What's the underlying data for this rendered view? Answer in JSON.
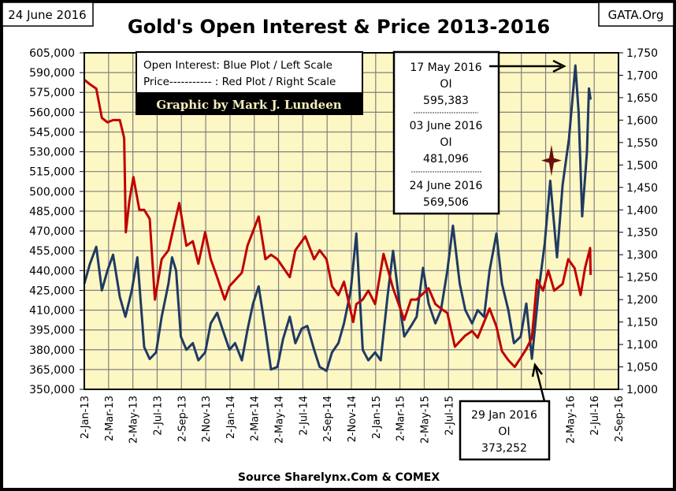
{
  "header": {
    "date": "24 June 2016",
    "site": "GATA.Org"
  },
  "legend": {
    "line1": "Open Interest:  Blue Plot / Left Scale",
    "line2": "Price----------- : Red Plot / Right Scale",
    "credit": "Graphic by Mark J. Lundeen"
  },
  "annotations": {
    "box1": {
      "a_date": "17 May 2016",
      "a_label": "OI",
      "a_value": "595,383",
      "b_date": "03 June 2016",
      "b_label": "OI",
      "b_value": "481,096",
      "c_date": "24 June 2016",
      "c_value": "569,506"
    },
    "box2": {
      "date": "29 Jan 2016",
      "label": "OI",
      "value": "373,252"
    }
  },
  "source": "Source Sharelynx.Com & COMEX",
  "colors": {
    "oi": "#1f3a63",
    "price": "#c00000",
    "plot_bg": "#fdf7c3",
    "grid": "#808080",
    "marker": "#6b0f0f"
  },
  "chart_data": {
    "type": "line",
    "title": "Gold's Open Interest & Price 2013-2016",
    "grid": true,
    "x_range": [
      "2013-01-02",
      "2016-09-02"
    ],
    "x_ticks": [
      "2-Jan-13",
      "2-Mar-13",
      "2-May-13",
      "2-Jul-13",
      "2-Sep-13",
      "2-Nov-13",
      "2-Jan-14",
      "2-Mar-14",
      "2-May-14",
      "2-Jul-14",
      "2-Sep-14",
      "2-Nov-14",
      "2-Jan-15",
      "2-Mar-15",
      "2-May-15",
      "2-Jul-15",
      "",
      "",
      "",
      "",
      "2-May-16",
      "2-Jul-16",
      "2-Sep-16"
    ],
    "y_left": {
      "range": [
        350000,
        605000
      ],
      "ticks": [
        "350,000",
        "365,000",
        "380,000",
        "395,000",
        "410,000",
        "425,000",
        "440,000",
        "455,000",
        "470,000",
        "485,000",
        "500,000",
        "515,000",
        "530,000",
        "545,000",
        "560,000",
        "575,000",
        "590,000",
        "605,000"
      ]
    },
    "y_right": {
      "range": [
        1000,
        1750
      ],
      "ticks": [
        "1,000",
        "1,050",
        "1,100",
        "1,150",
        "1,200",
        "1,250",
        "1,300",
        "1,350",
        "1,400",
        "1,450",
        "1,500",
        "1,550",
        "1,600",
        "1,650",
        "1,700",
        "1,750"
      ]
    },
    "series": [
      {
        "axis": "left",
        "points": [
          [
            "2013-01-02",
            430000
          ],
          [
            "2013-01-16",
            445000
          ],
          [
            "2013-02-01",
            458000
          ],
          [
            "2013-02-15",
            425000
          ],
          [
            "2013-03-01",
            440000
          ],
          [
            "2013-03-15",
            452000
          ],
          [
            "2013-04-01",
            420000
          ],
          [
            "2013-04-15",
            405000
          ],
          [
            "2013-05-01",
            425000
          ],
          [
            "2013-05-15",
            450000
          ],
          [
            "2013-06-01",
            382000
          ],
          [
            "2013-06-15",
            373000
          ],
          [
            "2013-07-01",
            378000
          ],
          [
            "2013-07-15",
            405000
          ],
          [
            "2013-08-01",
            430000
          ],
          [
            "2013-08-10",
            450000
          ],
          [
            "2013-08-20",
            440000
          ],
          [
            "2013-09-01",
            390000
          ],
          [
            "2013-09-15",
            380000
          ],
          [
            "2013-10-01",
            385000
          ],
          [
            "2013-10-15",
            372000
          ],
          [
            "2013-11-01",
            378000
          ],
          [
            "2013-11-15",
            400000
          ],
          [
            "2013-12-01",
            408000
          ],
          [
            "2013-12-15",
            395000
          ],
          [
            "2014-01-01",
            380000
          ],
          [
            "2014-01-15",
            385000
          ],
          [
            "2014-02-01",
            372000
          ],
          [
            "2014-02-15",
            395000
          ],
          [
            "2014-03-01",
            415000
          ],
          [
            "2014-03-15",
            428000
          ],
          [
            "2014-04-01",
            395000
          ],
          [
            "2014-04-15",
            365000
          ],
          [
            "2014-05-01",
            367000
          ],
          [
            "2014-05-15",
            388000
          ],
          [
            "2014-06-01",
            405000
          ],
          [
            "2014-06-15",
            385000
          ],
          [
            "2014-07-01",
            396000
          ],
          [
            "2014-07-15",
            398000
          ],
          [
            "2014-08-01",
            380000
          ],
          [
            "2014-08-15",
            367000
          ],
          [
            "2014-09-01",
            364000
          ],
          [
            "2014-09-15",
            378000
          ],
          [
            "2014-10-01",
            385000
          ],
          [
            "2014-10-15",
            400000
          ],
          [
            "2014-11-01",
            425000
          ],
          [
            "2014-11-15",
            468000
          ],
          [
            "2014-12-01",
            380000
          ],
          [
            "2014-12-15",
            372000
          ],
          [
            "2015-01-01",
            378000
          ],
          [
            "2015-01-15",
            372000
          ],
          [
            "2015-02-01",
            420000
          ],
          [
            "2015-02-15",
            455000
          ],
          [
            "2015-03-01",
            420000
          ],
          [
            "2015-03-15",
            390000
          ],
          [
            "2015-04-01",
            398000
          ],
          [
            "2015-04-15",
            405000
          ],
          [
            "2015-05-01",
            442000
          ],
          [
            "2015-05-15",
            415000
          ],
          [
            "2015-06-01",
            400000
          ],
          [
            "2015-06-15",
            410000
          ],
          [
            "2015-07-01",
            440000
          ],
          [
            "2015-07-15",
            474000
          ],
          [
            "2015-08-01",
            430000
          ],
          [
            "2015-08-15",
            410000
          ],
          [
            "2015-09-01",
            400000
          ],
          [
            "2015-09-15",
            410000
          ],
          [
            "2015-10-01",
            405000
          ],
          [
            "2015-10-15",
            440000
          ],
          [
            "2015-11-01",
            468000
          ],
          [
            "2015-11-15",
            430000
          ],
          [
            "2015-12-01",
            410000
          ],
          [
            "2015-12-15",
            385000
          ],
          [
            "2016-01-01",
            390000
          ],
          [
            "2016-01-15",
            415000
          ],
          [
            "2016-01-29",
            373252
          ],
          [
            "2016-02-15",
            425000
          ],
          [
            "2016-03-01",
            460000
          ],
          [
            "2016-03-15",
            508000
          ],
          [
            "2016-04-01",
            450000
          ],
          [
            "2016-04-15",
            505000
          ],
          [
            "2016-05-01",
            540000
          ],
          [
            "2016-05-17",
            595383
          ],
          [
            "2016-05-25",
            560000
          ],
          [
            "2016-06-03",
            481096
          ],
          [
            "2016-06-15",
            530000
          ],
          [
            "2016-06-20",
            578000
          ],
          [
            "2016-06-24",
            569506
          ]
        ]
      },
      {
        "axis": "right",
        "points": [
          [
            "2013-01-02",
            1690
          ],
          [
            "2013-01-16",
            1680
          ],
          [
            "2013-02-01",
            1670
          ],
          [
            "2013-02-15",
            1605
          ],
          [
            "2013-03-01",
            1595
          ],
          [
            "2013-03-15",
            1600
          ],
          [
            "2013-04-01",
            1600
          ],
          [
            "2013-04-12",
            1560
          ],
          [
            "2013-04-16",
            1350
          ],
          [
            "2013-04-25",
            1420
          ],
          [
            "2013-05-05",
            1473
          ],
          [
            "2013-05-20",
            1400
          ],
          [
            "2013-06-01",
            1400
          ],
          [
            "2013-06-15",
            1380
          ],
          [
            "2013-06-28",
            1200
          ],
          [
            "2013-07-15",
            1290
          ],
          [
            "2013-08-01",
            1310
          ],
          [
            "2013-08-28",
            1415
          ],
          [
            "2013-09-15",
            1320
          ],
          [
            "2013-10-01",
            1330
          ],
          [
            "2013-10-15",
            1280
          ],
          [
            "2013-11-01",
            1350
          ],
          [
            "2013-11-15",
            1290
          ],
          [
            "2013-12-01",
            1250
          ],
          [
            "2013-12-20",
            1200
          ],
          [
            "2014-01-01",
            1230
          ],
          [
            "2014-02-01",
            1260
          ],
          [
            "2014-02-15",
            1320
          ],
          [
            "2014-03-15",
            1385
          ],
          [
            "2014-04-01",
            1290
          ],
          [
            "2014-04-15",
            1300
          ],
          [
            "2014-05-01",
            1290
          ],
          [
            "2014-06-01",
            1250
          ],
          [
            "2014-06-15",
            1310
          ],
          [
            "2014-07-10",
            1341
          ],
          [
            "2014-08-01",
            1290
          ],
          [
            "2014-08-15",
            1310
          ],
          [
            "2014-09-01",
            1290
          ],
          [
            "2014-09-15",
            1230
          ],
          [
            "2014-10-01",
            1210
          ],
          [
            "2014-10-15",
            1240
          ],
          [
            "2014-11-07",
            1150
          ],
          [
            "2014-11-15",
            1190
          ],
          [
            "2014-12-01",
            1200
          ],
          [
            "2014-12-15",
            1220
          ],
          [
            "2015-01-01",
            1190
          ],
          [
            "2015-01-22",
            1302
          ],
          [
            "2015-02-15",
            1225
          ],
          [
            "2015-03-15",
            1155
          ],
          [
            "2015-04-01",
            1200
          ],
          [
            "2015-04-15",
            1200
          ],
          [
            "2015-05-15",
            1225
          ],
          [
            "2015-06-01",
            1190
          ],
          [
            "2015-06-15",
            1180
          ],
          [
            "2015-07-01",
            1170
          ],
          [
            "2015-07-20",
            1095
          ],
          [
            "2015-08-15",
            1120
          ],
          [
            "2015-09-01",
            1130
          ],
          [
            "2015-09-15",
            1115
          ],
          [
            "2015-10-15",
            1180
          ],
          [
            "2015-11-01",
            1140
          ],
          [
            "2015-11-15",
            1085
          ],
          [
            "2015-12-01",
            1065
          ],
          [
            "2015-12-17",
            1050
          ],
          [
            "2016-01-01",
            1070
          ],
          [
            "2016-01-15",
            1090
          ],
          [
            "2016-01-29",
            1115
          ],
          [
            "2016-02-11",
            1244
          ],
          [
            "2016-02-26",
            1220
          ],
          [
            "2016-03-10",
            1265
          ],
          [
            "2016-03-25",
            1220
          ],
          [
            "2016-04-15",
            1235
          ],
          [
            "2016-04-29",
            1290
          ],
          [
            "2016-05-15",
            1270
          ],
          [
            "2016-05-30",
            1210
          ],
          [
            "2016-06-10",
            1270
          ],
          [
            "2016-06-23",
            1315
          ],
          [
            "2016-06-24",
            1255
          ]
        ]
      }
    ],
    "marker": {
      "icon": "four-point-star",
      "date": "2016-03-18",
      "price": 1510
    }
  }
}
